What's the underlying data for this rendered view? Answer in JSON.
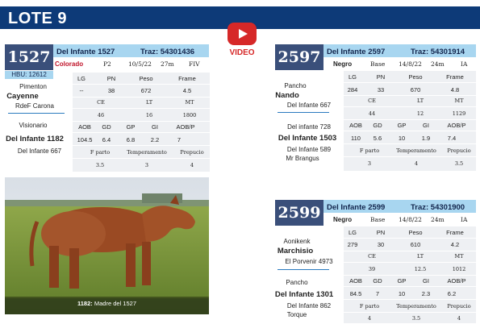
{
  "header": {
    "title": "LOTE 9"
  },
  "video": {
    "label": "VIDEO"
  },
  "c1527": {
    "id": "1527",
    "name": "Del Infante 1527",
    "traz": "Traz: 54301436",
    "hbu": "HBU: 12612",
    "color": "Colorado",
    "pelaje": "P2",
    "fecha": "10/5/22",
    "edad": "27m",
    "tipo": "FIV",
    "h1": [
      "LG",
      "PN",
      "Peso",
      "Frame"
    ],
    "v1": [
      "--",
      "38",
      "672",
      "4.5"
    ],
    "h2": [
      "CE",
      "LT",
      "MT"
    ],
    "v2": [
      "46",
      "16",
      "1800"
    ],
    "h3": [
      "AOB",
      "GD",
      "GP",
      "GI",
      "AOB/P"
    ],
    "v3": [
      "104.5",
      "6.4",
      "6.8",
      "2.2",
      "7"
    ],
    "h4": [
      "F parto",
      "Temperamento",
      "Prepucio"
    ],
    "v4": [
      "3.5",
      "3",
      "4"
    ],
    "sire_sire": "Pimenton",
    "sire": "Cayenne",
    "sire_dam": "RdeF Carona",
    "dam_sire": "Visionario",
    "dam": "Del Infante 1182",
    "dam_dam": "Del Infante 667"
  },
  "c2597": {
    "id": "2597",
    "name": "Del Infante 2597",
    "traz": "Traz: 54301914",
    "color": "Negro",
    "pelaje": "Base",
    "fecha": "14/8/22",
    "edad": "24m",
    "tipo": "IA",
    "h1": [
      "LG",
      "PN",
      "Peso",
      "Frame"
    ],
    "v1": [
      "284",
      "33",
      "670",
      "4.8"
    ],
    "h2": [
      "CE",
      "LT",
      "MT"
    ],
    "v2": [
      "44",
      "12",
      "1129"
    ],
    "h3": [
      "AOB",
      "GD",
      "GP",
      "GI",
      "AOB/P"
    ],
    "v3": [
      "110",
      "5.6",
      "10",
      "1.9",
      "7.4"
    ],
    "h4": [
      "F parto",
      "Temperamento",
      "Prepucio"
    ],
    "v4": [
      "3",
      "4",
      "3.5"
    ],
    "sire_sire": "Pancho",
    "sire": "Nando",
    "sire_dam": "Del Infante 667",
    "dam_sire": "Del infante 728",
    "dam": "Del Infante 1503",
    "dam_dam": "Del Infante 589",
    "dam_dam2": "Mr Brangus"
  },
  "c2599": {
    "id": "2599",
    "name": "Del Infante 2599",
    "traz": "Traz: 54301900",
    "color": "Negro",
    "pelaje": "Base",
    "fecha": "14/8/22",
    "edad": "24m",
    "tipo": "IA",
    "h1": [
      "LG",
      "PN",
      "Peso",
      "Frame"
    ],
    "v1": [
      "279",
      "30",
      "610",
      "4.2"
    ],
    "h2": [
      "CE",
      "LT",
      "MT"
    ],
    "v2": [
      "39",
      "12.5",
      "1012"
    ],
    "h3": [
      "AOB",
      "GD",
      "GP",
      "GI",
      "AOB/P"
    ],
    "v3": [
      "84.5",
      "7",
      "10",
      "2.3",
      "6.2"
    ],
    "h4": [
      "F parto",
      "Temperamento",
      "Prepucio"
    ],
    "v4": [
      "4",
      "3.5",
      "4"
    ],
    "sire_sire": "Aonikenk",
    "sire": "Marchisio",
    "sire_dam": "El Porvenir 4973",
    "dam_sire": "Pancho",
    "dam": "Del Infante 1301",
    "dam_dam": "Del Infante 862",
    "dam_dam2": "Torque"
  },
  "photo": {
    "caption_bold": "1182:",
    "caption_text": " Madre del 1527"
  }
}
